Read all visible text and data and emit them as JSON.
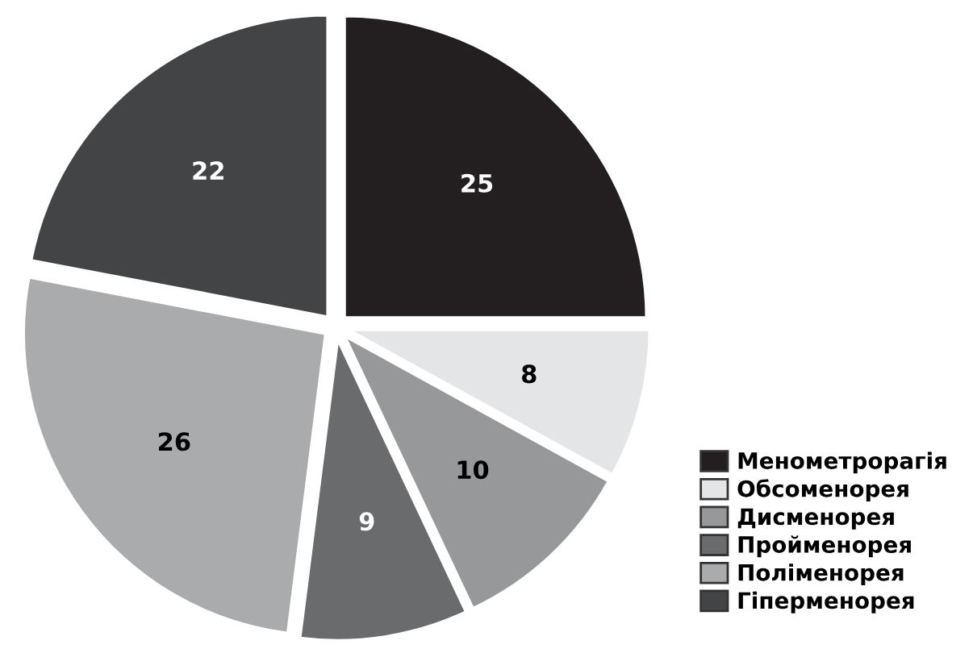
{
  "chart_data": {
    "type": "pie",
    "categories": [
      "Менометрорагія",
      "Обсоменорея",
      "Дисменорея",
      "Пройменорея",
      "Поліменорея",
      "Гіперменорея"
    ],
    "values": [
      25,
      8,
      10,
      9,
      26,
      22
    ],
    "colors": [
      "#231f20",
      "#e4e5e6",
      "#97989a",
      "#6a6b6d",
      "#a9abad",
      "#434445"
    ],
    "data_labels": true,
    "legend": "bottom right"
  }
}
